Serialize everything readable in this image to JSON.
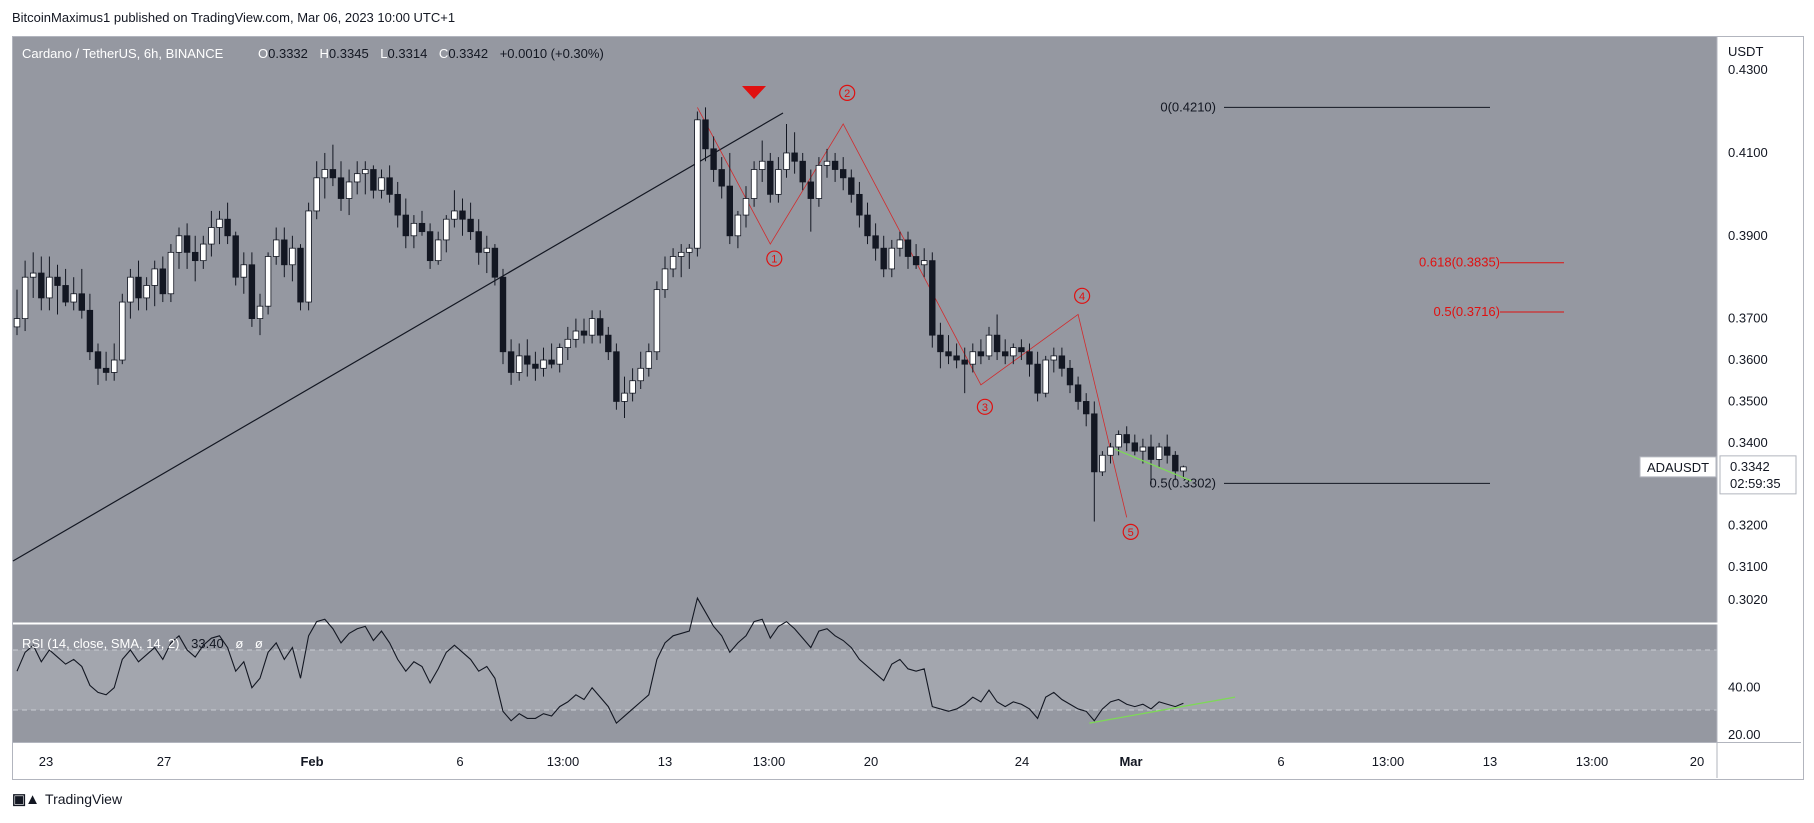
{
  "header": {
    "publisher": "BitcoinMaximus1 published on TradingView.com, Mar 06, 2023 10:00 UTC+1"
  },
  "footer": {
    "brand": "TradingView"
  },
  "legend": {
    "symbol": "Cardano / TetherUS, 6h, BINANCE",
    "o_label": "O",
    "o": "0.3332",
    "h_label": "H",
    "h": "0.3345",
    "l_label": "L",
    "l": "0.3314",
    "c_label": "C",
    "c": "0.3342",
    "change": "+0.0010 (+0.30%)"
  },
  "rsi_legend": {
    "label": "RSI (14, close, SMA, 14, 2)",
    "value": "33.40",
    "extra1": "ø",
    "extra2": "ø"
  },
  "price_axis": {
    "unit": "USDT",
    "ticks": [
      "0.4300",
      "0.4100",
      "0.3900",
      "0.3700",
      "0.3600",
      "0.3500",
      "0.3400",
      "0.3200",
      "0.3100",
      "0.3020"
    ]
  },
  "rsi_axis": {
    "ticks": [
      "40.00",
      "20.00"
    ]
  },
  "time_axis": {
    "ticks": [
      "23",
      "27",
      "Feb",
      "6",
      "13:00",
      "13",
      "13:00",
      "20",
      "24",
      "Mar",
      "6",
      "13:00",
      "13",
      "13:00",
      "20"
    ]
  },
  "last_price": {
    "symbol": "ADAUSDT",
    "price": "0.3342",
    "countdown": "02:59:35"
  },
  "fib_levels": [
    {
      "label": "0(0.4210)",
      "price": 0.421,
      "color": "#131722"
    },
    {
      "label": "0.618(0.3835)",
      "price": 0.3835,
      "color": "#e01010"
    },
    {
      "label": "0.5(0.3716)",
      "price": 0.3716,
      "color": "#e01010"
    },
    {
      "label": "0.5(0.3302)",
      "price": 0.3302,
      "color": "#131722"
    }
  ],
  "wave_labels": [
    "1",
    "2",
    "3",
    "4",
    "5"
  ],
  "colors": {
    "background": "#9598a1",
    "panel": "#9598a1",
    "candle_up": "#ffffff",
    "candle_down": "#131722",
    "fib_red": "#e01010",
    "divergence": "#7ed957",
    "wave": "#e01010"
  },
  "chart_data": {
    "type": "candlestick",
    "ylim": [
      0.2965,
      0.438
    ],
    "rsi_ylim": [
      17,
      67
    ],
    "ohlc": [
      [
        0.368,
        0.377,
        0.366,
        0.37
      ],
      [
        0.37,
        0.384,
        0.367,
        0.38
      ],
      [
        0.38,
        0.386,
        0.375,
        0.381
      ],
      [
        0.381,
        0.385,
        0.372,
        0.375
      ],
      [
        0.375,
        0.385,
        0.372,
        0.38
      ],
      [
        0.38,
        0.383,
        0.371,
        0.378
      ],
      [
        0.378,
        0.382,
        0.373,
        0.374
      ],
      [
        0.374,
        0.38,
        0.372,
        0.376
      ],
      [
        0.376,
        0.382,
        0.37,
        0.372
      ],
      [
        0.372,
        0.376,
        0.36,
        0.362
      ],
      [
        0.362,
        0.364,
        0.354,
        0.358
      ],
      [
        0.358,
        0.362,
        0.355,
        0.357
      ],
      [
        0.357,
        0.364,
        0.355,
        0.36
      ],
      [
        0.36,
        0.376,
        0.359,
        0.374
      ],
      [
        0.374,
        0.382,
        0.37,
        0.38
      ],
      [
        0.38,
        0.384,
        0.372,
        0.375
      ],
      [
        0.375,
        0.38,
        0.372,
        0.378
      ],
      [
        0.378,
        0.384,
        0.373,
        0.382
      ],
      [
        0.382,
        0.385,
        0.374,
        0.376
      ],
      [
        0.376,
        0.388,
        0.374,
        0.386
      ],
      [
        0.386,
        0.392,
        0.382,
        0.39
      ],
      [
        0.39,
        0.393,
        0.382,
        0.386
      ],
      [
        0.386,
        0.39,
        0.379,
        0.384
      ],
      [
        0.384,
        0.39,
        0.382,
        0.388
      ],
      [
        0.388,
        0.396,
        0.385,
        0.392
      ],
      [
        0.392,
        0.396,
        0.388,
        0.394
      ],
      [
        0.394,
        0.398,
        0.388,
        0.39
      ],
      [
        0.39,
        0.391,
        0.378,
        0.38
      ],
      [
        0.38,
        0.386,
        0.376,
        0.383
      ],
      [
        0.383,
        0.386,
        0.368,
        0.37
      ],
      [
        0.37,
        0.376,
        0.366,
        0.373
      ],
      [
        0.373,
        0.386,
        0.371,
        0.385
      ],
      [
        0.385,
        0.392,
        0.383,
        0.389
      ],
      [
        0.389,
        0.392,
        0.38,
        0.383
      ],
      [
        0.383,
        0.39,
        0.379,
        0.387
      ],
      [
        0.387,
        0.388,
        0.372,
        0.374
      ],
      [
        0.374,
        0.398,
        0.372,
        0.396
      ],
      [
        0.396,
        0.408,
        0.394,
        0.404
      ],
      [
        0.404,
        0.41,
        0.399,
        0.406
      ],
      [
        0.406,
        0.412,
        0.402,
        0.404
      ],
      [
        0.404,
        0.408,
        0.396,
        0.399
      ],
      [
        0.399,
        0.406,
        0.395,
        0.403
      ],
      [
        0.403,
        0.408,
        0.4,
        0.405
      ],
      [
        0.405,
        0.408,
        0.4,
        0.406
      ],
      [
        0.406,
        0.407,
        0.399,
        0.401
      ],
      [
        0.401,
        0.406,
        0.399,
        0.404
      ],
      [
        0.404,
        0.407,
        0.398,
        0.4
      ],
      [
        0.4,
        0.403,
        0.392,
        0.395
      ],
      [
        0.395,
        0.399,
        0.387,
        0.39
      ],
      [
        0.39,
        0.395,
        0.387,
        0.393
      ],
      [
        0.393,
        0.396,
        0.39,
        0.391
      ],
      [
        0.391,
        0.393,
        0.382,
        0.384
      ],
      [
        0.384,
        0.391,
        0.383,
        0.389
      ],
      [
        0.389,
        0.395,
        0.386,
        0.394
      ],
      [
        0.394,
        0.401,
        0.392,
        0.396
      ],
      [
        0.396,
        0.399,
        0.39,
        0.394
      ],
      [
        0.394,
        0.398,
        0.389,
        0.391
      ],
      [
        0.391,
        0.394,
        0.383,
        0.386
      ],
      [
        0.386,
        0.39,
        0.381,
        0.387
      ],
      [
        0.387,
        0.388,
        0.378,
        0.38
      ],
      [
        0.38,
        0.382,
        0.359,
        0.362
      ],
      [
        0.362,
        0.365,
        0.354,
        0.357
      ],
      [
        0.357,
        0.364,
        0.355,
        0.361
      ],
      [
        0.361,
        0.365,
        0.356,
        0.359
      ],
      [
        0.359,
        0.362,
        0.355,
        0.358
      ],
      [
        0.358,
        0.363,
        0.356,
        0.36
      ],
      [
        0.36,
        0.364,
        0.358,
        0.359
      ],
      [
        0.359,
        0.364,
        0.357,
        0.363
      ],
      [
        0.363,
        0.368,
        0.36,
        0.365
      ],
      [
        0.365,
        0.37,
        0.363,
        0.367
      ],
      [
        0.367,
        0.37,
        0.364,
        0.366
      ],
      [
        0.366,
        0.372,
        0.364,
        0.37
      ],
      [
        0.37,
        0.372,
        0.364,
        0.366
      ],
      [
        0.366,
        0.368,
        0.36,
        0.362
      ],
      [
        0.362,
        0.364,
        0.348,
        0.35
      ],
      [
        0.35,
        0.356,
        0.346,
        0.352
      ],
      [
        0.352,
        0.358,
        0.35,
        0.355
      ],
      [
        0.355,
        0.362,
        0.353,
        0.358
      ],
      [
        0.358,
        0.364,
        0.356,
        0.362
      ],
      [
        0.362,
        0.379,
        0.36,
        0.377
      ],
      [
        0.377,
        0.385,
        0.375,
        0.382
      ],
      [
        0.382,
        0.387,
        0.38,
        0.385
      ],
      [
        0.385,
        0.388,
        0.38,
        0.386
      ],
      [
        0.386,
        0.388,
        0.382,
        0.387
      ],
      [
        0.387,
        0.42,
        0.385,
        0.418
      ],
      [
        0.418,
        0.421,
        0.408,
        0.411
      ],
      [
        0.411,
        0.414,
        0.403,
        0.406
      ],
      [
        0.406,
        0.409,
        0.399,
        0.402
      ],
      [
        0.402,
        0.41,
        0.388,
        0.39
      ],
      [
        0.39,
        0.396,
        0.387,
        0.395
      ],
      [
        0.395,
        0.402,
        0.392,
        0.399
      ],
      [
        0.399,
        0.408,
        0.397,
        0.406
      ],
      [
        0.406,
        0.413,
        0.403,
        0.408
      ],
      [
        0.408,
        0.41,
        0.398,
        0.4
      ],
      [
        0.4,
        0.409,
        0.398,
        0.406
      ],
      [
        0.406,
        0.417,
        0.404,
        0.41
      ],
      [
        0.41,
        0.415,
        0.405,
        0.408
      ],
      [
        0.408,
        0.41,
        0.401,
        0.403
      ],
      [
        0.403,
        0.406,
        0.391,
        0.399
      ],
      [
        0.399,
        0.409,
        0.397,
        0.407
      ],
      [
        0.407,
        0.411,
        0.404,
        0.408
      ],
      [
        0.408,
        0.41,
        0.403,
        0.406
      ],
      [
        0.406,
        0.409,
        0.401,
        0.404
      ],
      [
        0.404,
        0.406,
        0.398,
        0.4
      ],
      [
        0.4,
        0.403,
        0.392,
        0.395
      ],
      [
        0.395,
        0.398,
        0.388,
        0.39
      ],
      [
        0.39,
        0.393,
        0.384,
        0.387
      ],
      [
        0.387,
        0.39,
        0.38,
        0.382
      ],
      [
        0.382,
        0.389,
        0.38,
        0.387
      ],
      [
        0.387,
        0.391,
        0.385,
        0.389
      ],
      [
        0.389,
        0.391,
        0.382,
        0.385
      ],
      [
        0.385,
        0.388,
        0.382,
        0.383
      ],
      [
        0.383,
        0.387,
        0.38,
        0.384
      ],
      [
        0.384,
        0.386,
        0.363,
        0.366
      ],
      [
        0.366,
        0.369,
        0.358,
        0.362
      ],
      [
        0.362,
        0.366,
        0.359,
        0.361
      ],
      [
        0.361,
        0.364,
        0.358,
        0.36
      ],
      [
        0.36,
        0.363,
        0.352,
        0.359
      ],
      [
        0.359,
        0.364,
        0.357,
        0.362
      ],
      [
        0.362,
        0.365,
        0.359,
        0.361
      ],
      [
        0.361,
        0.368,
        0.36,
        0.366
      ],
      [
        0.366,
        0.371,
        0.36,
        0.362
      ],
      [
        0.362,
        0.365,
        0.359,
        0.361
      ],
      [
        0.361,
        0.364,
        0.359,
        0.363
      ],
      [
        0.363,
        0.365,
        0.36,
        0.362
      ],
      [
        0.362,
        0.364,
        0.356,
        0.359
      ],
      [
        0.359,
        0.362,
        0.35,
        0.352
      ],
      [
        0.352,
        0.361,
        0.351,
        0.36
      ],
      [
        0.36,
        0.363,
        0.357,
        0.361
      ],
      [
        0.361,
        0.363,
        0.356,
        0.358
      ],
      [
        0.358,
        0.36,
        0.352,
        0.354
      ],
      [
        0.354,
        0.356,
        0.348,
        0.35
      ],
      [
        0.35,
        0.352,
        0.344,
        0.347
      ],
      [
        0.347,
        0.35,
        0.321,
        0.333
      ],
      [
        0.333,
        0.338,
        0.332,
        0.337
      ],
      [
        0.337,
        0.34,
        0.335,
        0.339
      ],
      [
        0.339,
        0.343,
        0.337,
        0.342
      ],
      [
        0.342,
        0.344,
        0.338,
        0.34
      ],
      [
        0.34,
        0.342,
        0.337,
        0.338
      ],
      [
        0.338,
        0.341,
        0.335,
        0.339
      ],
      [
        0.339,
        0.342,
        0.33,
        0.336
      ],
      [
        0.336,
        0.34,
        0.334,
        0.339
      ],
      [
        0.339,
        0.342,
        0.335,
        0.337
      ],
      [
        0.337,
        0.338,
        0.331,
        0.3332
      ],
      [
        0.3332,
        0.3345,
        0.3314,
        0.3342
      ]
    ],
    "rsi": [
      47,
      55,
      58,
      51,
      56,
      53,
      50,
      52,
      49,
      41,
      38,
      37,
      40,
      52,
      56,
      51,
      54,
      57,
      52,
      59,
      62,
      56,
      53,
      58,
      61,
      62,
      57,
      47,
      51,
      40,
      44,
      55,
      59,
      52,
      57,
      44,
      62,
      68,
      69,
      65,
      59,
      63,
      65,
      66,
      60,
      64,
      59,
      52,
      47,
      51,
      49,
      42,
      48,
      55,
      58,
      55,
      52,
      47,
      49,
      44,
      30,
      26,
      29,
      27,
      27,
      29,
      28,
      32,
      34,
      37,
      35,
      40,
      36,
      32,
      25,
      28,
      31,
      34,
      37,
      52,
      59,
      62,
      63,
      64,
      78,
      72,
      66,
      62,
      55,
      59,
      62,
      68,
      69,
      61,
      66,
      68,
      65,
      61,
      57,
      64,
      65,
      62,
      60,
      57,
      52,
      49,
      46,
      43,
      50,
      52,
      48,
      47,
      48,
      32,
      31,
      30,
      31,
      33,
      36,
      34,
      39,
      34,
      32,
      34,
      33,
      31,
      27,
      36,
      38,
      35,
      33,
      31,
      30,
      26,
      31,
      34,
      35,
      33,
      32,
      33,
      31,
      34,
      33,
      32,
      33.4
    ]
  }
}
